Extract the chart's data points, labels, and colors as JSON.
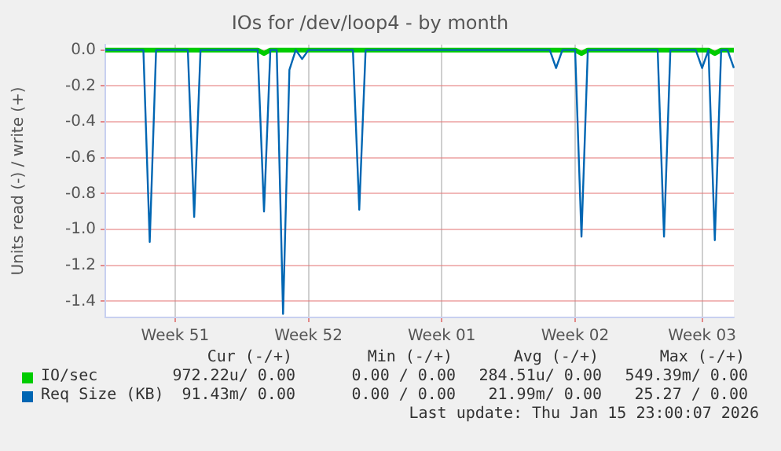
{
  "chart_data": {
    "type": "line",
    "title": "IOs for /dev/loop4 - by month",
    "ylabel": "Units read (-) / write (+)",
    "categories": [
      null,
      null,
      null,
      null,
      null,
      null,
      null,
      null,
      null,
      null,
      null,
      "Week 51",
      null,
      null,
      null,
      null,
      null,
      null,
      null,
      null,
      null,
      null,
      null,
      null,
      null,
      null,
      null,
      null,
      null,
      null,
      null,
      null,
      "Week 52",
      null,
      null,
      null,
      null,
      null,
      null,
      null,
      null,
      null,
      null,
      null,
      null,
      null,
      null,
      null,
      null,
      null,
      null,
      null,
      null,
      "Week 01",
      null,
      null,
      null,
      null,
      null,
      null,
      null,
      null,
      null,
      null,
      null,
      null,
      null,
      null,
      null,
      null,
      null,
      null,
      null,
      null,
      "Week 02",
      null,
      null,
      null,
      null,
      null,
      null,
      null,
      null,
      null,
      null,
      null,
      null,
      null,
      null,
      null,
      null,
      null,
      null,
      null,
      "Week 03",
      null,
      null,
      null,
      null,
      null
    ],
    "ylim": [
      -1.49,
      0.03
    ],
    "yticks": [
      {
        "value": 0,
        "label": "0.0"
      },
      -0.2,
      -0.4,
      -0.6,
      -0.8,
      {
        "value": -1,
        "label": "-1.0"
      },
      -1.2,
      -1.4
    ],
    "grid": true,
    "legend": "bottom",
    "marker": "none",
    "line_style": "solid",
    "series": [
      {
        "name": "IO/sec",
        "color": "#00cc00",
        "values": [
          0,
          0,
          0,
          0,
          0,
          0,
          0,
          0,
          0,
          0,
          0,
          0,
          0,
          0,
          0,
          0,
          0,
          0,
          0,
          0,
          0,
          0,
          0,
          0,
          0,
          -0.02,
          0,
          0,
          0,
          0,
          0,
          0,
          0,
          0,
          0,
          0,
          0,
          0,
          0,
          0,
          0,
          0,
          0,
          0,
          0,
          0,
          0,
          0,
          0,
          0,
          0,
          0,
          0,
          0,
          0,
          0,
          0,
          0,
          0,
          0,
          0,
          0,
          0,
          0,
          0,
          0,
          0,
          0,
          0,
          0,
          0,
          0,
          0,
          0,
          0,
          -0.02,
          0,
          0,
          0,
          0,
          0,
          0,
          0,
          0,
          0,
          0,
          0,
          0,
          0,
          0,
          0,
          0,
          0,
          0,
          0,
          0,
          -0.02,
          0,
          0,
          0
        ]
      },
      {
        "name": "Req Size (KB)",
        "color": "#0066b3",
        "values": [
          0,
          0,
          0,
          0,
          0,
          0,
          0,
          -1.07,
          0,
          0,
          0,
          0,
          0,
          0,
          -0.93,
          0,
          0,
          0,
          0,
          0,
          0,
          0,
          0,
          0,
          0,
          -0.9,
          0,
          0,
          -1.47,
          -0.11,
          0,
          -0.05,
          0,
          0,
          0,
          0,
          0,
          0,
          0,
          0,
          -0.89,
          0,
          0,
          0,
          0,
          0,
          0,
          0,
          0,
          0,
          0,
          0,
          0,
          0,
          0,
          0,
          0,
          0,
          0,
          0,
          0,
          0,
          0,
          0,
          0,
          0,
          0,
          0,
          0,
          0,
          0,
          -0.1,
          0,
          0,
          0,
          -1.04,
          0,
          0,
          0,
          0,
          0,
          0,
          0,
          0,
          0,
          0,
          0,
          0,
          -1.04,
          0,
          0,
          0,
          0,
          0,
          -0.1,
          0,
          -1.06,
          0,
          0,
          -0.1
        ]
      }
    ],
    "annotations": [
      "Cur (-/+)",
      "Min (-/+)",
      "Avg (-/+)",
      "Max (-/+)",
      "972.22u/ 0.00",
      "0.00 / 0.00",
      "284.51u/ 0.00",
      "549.39m/ 0.00",
      "91.43m/ 0.00",
      "0.00 / 0.00",
      "21.99m/ 0.00",
      "25.27 / 0.00",
      "Last update: Thu Jan 15 23:00:07 2026"
    ]
  }
}
